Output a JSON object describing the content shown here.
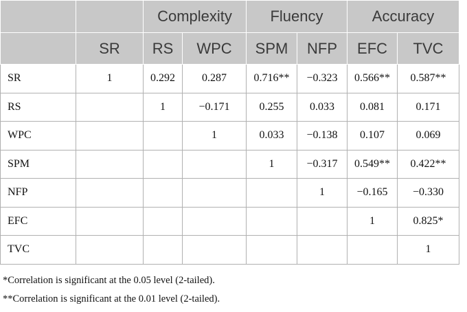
{
  "table": {
    "groups": [
      "Complexity",
      "Fluency",
      "Accuracy"
    ],
    "columns": [
      "SR",
      "RS",
      "WPC",
      "SPM",
      "NFP",
      "EFC",
      "TVC"
    ],
    "rows": [
      {
        "label": "SR",
        "cells": [
          "1",
          "0.292",
          "0.287",
          "0.716**",
          "−0.323",
          "0.566**",
          "0.587**"
        ]
      },
      {
        "label": "RS",
        "cells": [
          "1",
          "−0.171",
          "0.255",
          "0.033",
          "0.081",
          "0.171"
        ]
      },
      {
        "label": "WPC",
        "cells": [
          "1",
          "0.033",
          "−0.138",
          "0.107",
          "0.069"
        ]
      },
      {
        "label": "SPM",
        "cells": [
          "1",
          "−0.317",
          "0.549**",
          "0.422**"
        ]
      },
      {
        "label": "NFP",
        "cells": [
          "1",
          "−0.165",
          "−0.330"
        ]
      },
      {
        "label": "EFC",
        "cells": [
          "1",
          "0.825*"
        ]
      },
      {
        "label": "TVC",
        "cells": [
          "1"
        ]
      }
    ]
  },
  "footnotes": [
    "*Correlation is significant at the 0.05 level (2-tailed).",
    "**Correlation is significant at the 0.01 level (2-tailed)."
  ]
}
